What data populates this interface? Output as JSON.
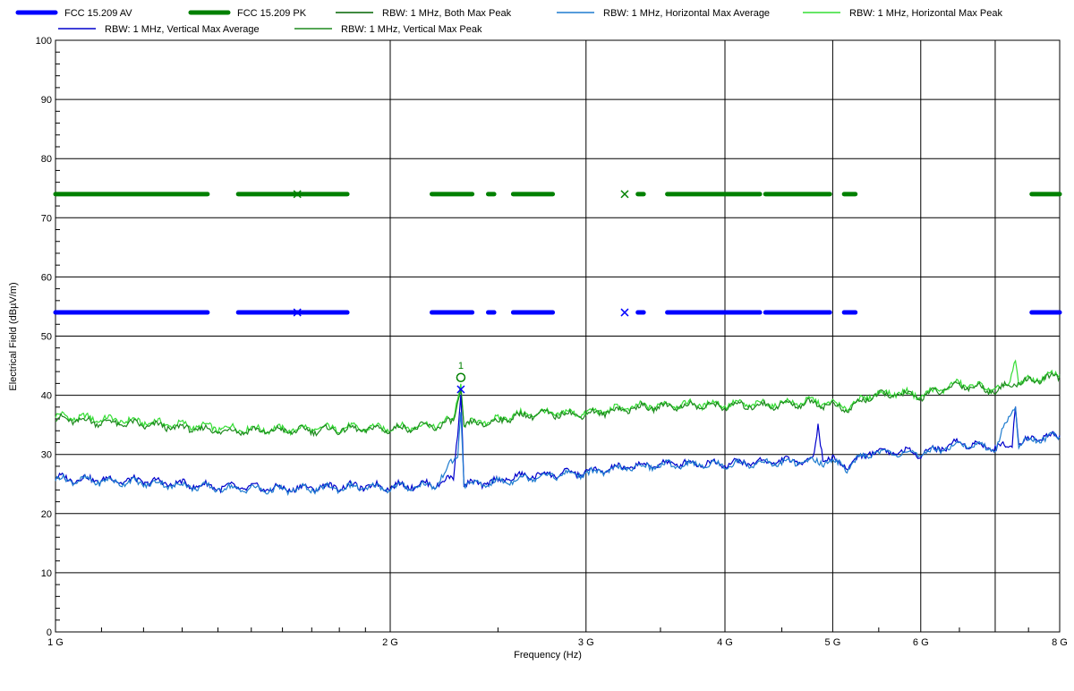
{
  "chart_data": {
    "type": "line",
    "title": "",
    "xlabel": "Frequency (Hz)",
    "ylabel": "Electrical Field (dBµV/m)",
    "xscale": "log",
    "xlim": [
      1000000000.0,
      8000000000.0
    ],
    "ylim": [
      0,
      100
    ],
    "grid": true,
    "legend_placement": "top",
    "x_ticks": [
      {
        "value": 1000000000.0,
        "label": "1 G"
      },
      {
        "value": 2000000000.0,
        "label": "2 G"
      },
      {
        "value": 3000000000.0,
        "label": "3 G"
      },
      {
        "value": 4000000000.0,
        "label": "4 G"
      },
      {
        "value": 5000000000.0,
        "label": "5 G"
      },
      {
        "value": 6000000000.0,
        "label": "6 G"
      },
      {
        "value": 8000000000.0,
        "label": "8 G"
      }
    ],
    "y_ticks": [
      0,
      10,
      20,
      30,
      40,
      50,
      60,
      70,
      80,
      90,
      100
    ],
    "legend": [
      {
        "name": "FCC 15.209 AV",
        "color": "#0000ff",
        "style": "thick"
      },
      {
        "name": "FCC 15.209 PK",
        "color": "#008000",
        "style": "thick"
      },
      {
        "name": "RBW: 1 MHz, Both Max Peak",
        "color": "#006400",
        "style": "thin"
      },
      {
        "name": "RBW: 1 MHz, Horizontal Max Average",
        "color": "#1e7ccf",
        "style": "thin"
      },
      {
        "name": "RBW: 1 MHz, Horizontal Max Peak",
        "color": "#33dd33",
        "style": "thin"
      },
      {
        "name": "RBW: 1 MHz, Vertical Max Average",
        "color": "#0000cc",
        "style": "thin"
      },
      {
        "name": "RBW: 1 MHz, Vertical Max Peak",
        "color": "#1f8a1f",
        "style": "thin"
      }
    ],
    "limit_lines": [
      {
        "name": "FCC 15.209 PK",
        "value": 74,
        "color": "#008000",
        "segments": [
          [
            1000000000.0,
            1370000000.0
          ],
          [
            1460000000.0,
            1830000000.0
          ],
          [
            2180000000.0,
            2370000000.0
          ],
          [
            2450000000.0,
            2480000000.0
          ],
          [
            2580000000.0,
            2800000000.0
          ],
          [
            3340000000.0,
            3380000000.0
          ],
          [
            3550000000.0,
            4300000000.0
          ],
          [
            4350000000.0,
            4970000000.0
          ],
          [
            5120000000.0,
            5240000000.0
          ],
          [
            7550000000.0,
            8000000000.0
          ]
        ]
      },
      {
        "name": "FCC 15.209 AV",
        "value": 54,
        "color": "#0000ff",
        "segments": [
          [
            1000000000.0,
            1370000000.0
          ],
          [
            1460000000.0,
            1830000000.0
          ],
          [
            2180000000.0,
            2370000000.0
          ],
          [
            2450000000.0,
            2480000000.0
          ],
          [
            2580000000.0,
            2800000000.0
          ],
          [
            3340000000.0,
            3380000000.0
          ],
          [
            3550000000.0,
            4300000000.0
          ],
          [
            4350000000.0,
            4970000000.0
          ],
          [
            5120000000.0,
            5240000000.0
          ],
          [
            7550000000.0,
            8000000000.0
          ]
        ]
      }
    ],
    "series": [
      {
        "name": "RBW: 1 MHz, Horizontal Max Peak",
        "color": "#33dd33",
        "points": [
          [
            1000000000.0,
            36.5
          ],
          [
            1200000000.0,
            35.5
          ],
          [
            1400000000.0,
            34.5
          ],
          [
            1600000000.0,
            34.2
          ],
          [
            1800000000.0,
            34.5
          ],
          [
            2000000000.0,
            34.5
          ],
          [
            2200000000.0,
            35
          ],
          [
            2280000000.0,
            36
          ],
          [
            2300000000.0,
            40
          ],
          [
            2315000000.0,
            42
          ],
          [
            2330000000.0,
            35
          ],
          [
            2400000000.0,
            35.5
          ],
          [
            2500000000.0,
            35.8
          ],
          [
            2550000000.0,
            36.5
          ],
          [
            2700000000.0,
            37
          ],
          [
            3000000000.0,
            37
          ],
          [
            3300000000.0,
            38
          ],
          [
            3600000000.0,
            38.5
          ],
          [
            4000000000.0,
            38.5
          ],
          [
            4400000000.0,
            38.5
          ],
          [
            4800000000.0,
            39
          ],
          [
            5000000000.0,
            38.5
          ],
          [
            5150000000.0,
            38
          ],
          [
            5400000000.0,
            40
          ],
          [
            5700000000.0,
            40.5
          ],
          [
            6000000000.0,
            40
          ],
          [
            6500000000.0,
            42
          ],
          [
            7000000000.0,
            41
          ],
          [
            7200000000.0,
            41.5
          ],
          [
            7300000000.0,
            46.5
          ],
          [
            7350000000.0,
            42
          ],
          [
            7700000000.0,
            43
          ],
          [
            8000000000.0,
            43.5
          ]
        ]
      },
      {
        "name": "RBW: 1 MHz, Vertical Max Peak",
        "color": "#1f8a1f",
        "points": [
          [
            1000000000.0,
            36
          ],
          [
            1200000000.0,
            35
          ],
          [
            1400000000.0,
            34
          ],
          [
            1600000000.0,
            34
          ],
          [
            1800000000.0,
            34.2
          ],
          [
            2000000000.0,
            34.3
          ],
          [
            2200000000.0,
            34.8
          ],
          [
            2280000000.0,
            35.5
          ],
          [
            2300000000.0,
            39
          ],
          [
            2315000000.0,
            41
          ],
          [
            2330000000.0,
            35
          ],
          [
            2400000000.0,
            35.2
          ],
          [
            2500000000.0,
            35.5
          ],
          [
            2550000000.0,
            36.2
          ],
          [
            2700000000.0,
            36.8
          ],
          [
            3000000000.0,
            36.8
          ],
          [
            3300000000.0,
            37.8
          ],
          [
            3600000000.0,
            38.2
          ],
          [
            4000000000.0,
            38.2
          ],
          [
            4400000000.0,
            38.3
          ],
          [
            4800000000.0,
            38.7
          ],
          [
            5000000000.0,
            38.3
          ],
          [
            5150000000.0,
            37.5
          ],
          [
            5400000000.0,
            39.8
          ],
          [
            5700000000.0,
            40.2
          ],
          [
            6000000000.0,
            39.8
          ],
          [
            6500000000.0,
            41.8
          ],
          [
            7000000000.0,
            40.8
          ],
          [
            7300000000.0,
            42
          ],
          [
            7700000000.0,
            42.8
          ],
          [
            8000000000.0,
            43.2
          ]
        ]
      },
      {
        "name": "RBW: 1 MHz, Vertical Max Average",
        "color": "#0000cc",
        "points": [
          [
            1000000000.0,
            26
          ],
          [
            1200000000.0,
            25.5
          ],
          [
            1400000000.0,
            24.5
          ],
          [
            1600000000.0,
            24.2
          ],
          [
            1800000000.0,
            24.6
          ],
          [
            2000000000.0,
            24.6
          ],
          [
            2200000000.0,
            25
          ],
          [
            2280000000.0,
            26
          ],
          [
            2300000000.0,
            34
          ],
          [
            2315000000.0,
            41
          ],
          [
            2330000000.0,
            25
          ],
          [
            2400000000.0,
            25
          ],
          [
            2500000000.0,
            25.5
          ],
          [
            2550000000.0,
            26
          ],
          [
            2700000000.0,
            26.5
          ],
          [
            3000000000.0,
            27
          ],
          [
            3300000000.0,
            28
          ],
          [
            3600000000.0,
            28.5
          ],
          [
            4000000000.0,
            28.5
          ],
          [
            4400000000.0,
            28.8
          ],
          [
            4800000000.0,
            29
          ],
          [
            4850000000.0,
            35
          ],
          [
            4900000000.0,
            29.5
          ],
          [
            5000000000.0,
            29
          ],
          [
            5150000000.0,
            28
          ],
          [
            5400000000.0,
            30.5
          ],
          [
            5700000000.0,
            30.5
          ],
          [
            6000000000.0,
            30.2
          ],
          [
            6500000000.0,
            32
          ],
          [
            7000000000.0,
            31.2
          ],
          [
            7250000000.0,
            31.5
          ],
          [
            7300000000.0,
            39
          ],
          [
            7350000000.0,
            32
          ],
          [
            7700000000.0,
            33
          ],
          [
            8000000000.0,
            33.2
          ]
        ]
      },
      {
        "name": "RBW: 1 MHz, Horizontal Max Average",
        "color": "#1e7ccf",
        "points": [
          [
            1000000000.0,
            25.8
          ],
          [
            1200000000.0,
            25.2
          ],
          [
            1400000000.0,
            24.3
          ],
          [
            1600000000.0,
            24
          ],
          [
            1800000000.0,
            24.4
          ],
          [
            2000000000.0,
            24.4
          ],
          [
            2200000000.0,
            24.8
          ],
          [
            2300000000.0,
            30
          ],
          [
            2315000000.0,
            38
          ],
          [
            2330000000.0,
            24.8
          ],
          [
            2500000000.0,
            25.3
          ],
          [
            2700000000.0,
            26.3
          ],
          [
            3000000000.0,
            26.8
          ],
          [
            3300000000.0,
            27.8
          ],
          [
            3600000000.0,
            28.3
          ],
          [
            4000000000.0,
            28.3
          ],
          [
            4400000000.0,
            28.6
          ],
          [
            4800000000.0,
            28.8
          ],
          [
            5000000000.0,
            28.8
          ],
          [
            5150000000.0,
            27.8
          ],
          [
            5400000000.0,
            30.3
          ],
          [
            5700000000.0,
            30.3
          ],
          [
            6000000000.0,
            30
          ],
          [
            6500000000.0,
            31.8
          ],
          [
            7000000000.0,
            31
          ],
          [
            7300000000.0,
            38.5
          ],
          [
            7350000000.0,
            31.8
          ],
          [
            7700000000.0,
            32.8
          ],
          [
            8000000000.0,
            33
          ]
        ]
      }
    ],
    "markers": [
      {
        "x": 1650000000.0,
        "y": 74,
        "shape": "x",
        "color": "#008000"
      },
      {
        "x": 1650000000.0,
        "y": 54,
        "shape": "x",
        "color": "#0000ff"
      },
      {
        "x": 3250000000.0,
        "y": 74,
        "shape": "x",
        "color": "#008000"
      },
      {
        "x": 3250000000.0,
        "y": 54,
        "shape": "x",
        "color": "#0000ff"
      },
      {
        "x": 2315000000.0,
        "y": 43,
        "shape": "circle",
        "color": "#008000",
        "label": "1"
      },
      {
        "x": 2315000000.0,
        "y": 41,
        "shape": "x",
        "color": "#0000ff"
      }
    ]
  }
}
